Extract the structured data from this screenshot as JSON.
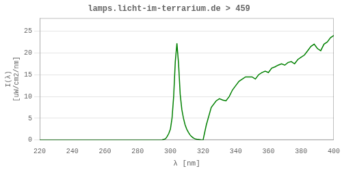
{
  "chart_data": {
    "type": "line",
    "title": "lamps.licht-im-terrarium.de > 459",
    "xlabel": "λ [nm]",
    "ylabel": "I(λ)\n[uW/cm2/nm]",
    "color": "#008000",
    "grid": "y",
    "xlim": [
      220,
      400
    ],
    "ylim": [
      0,
      28
    ],
    "xticks": [
      220,
      240,
      260,
      280,
      300,
      320,
      340,
      360,
      380,
      400
    ],
    "yticks": [
      0,
      5,
      10,
      15,
      20,
      25
    ],
    "x": [
      220,
      240,
      260,
      280,
      290,
      293,
      295,
      297,
      298,
      299,
      300,
      301,
      302,
      303,
      304,
      305,
      306,
      307,
      308,
      309,
      310,
      311,
      312,
      313,
      314,
      315,
      316,
      317,
      318,
      319,
      320,
      322,
      325,
      328,
      330,
      332,
      334,
      336,
      338,
      340,
      342,
      344,
      346,
      348,
      350,
      352,
      354,
      356,
      358,
      360,
      362,
      364,
      366,
      368,
      370,
      372,
      374,
      376,
      378,
      380,
      382,
      384,
      386,
      388,
      390,
      392,
      394,
      396,
      398,
      400
    ],
    "values": [
      0,
      0,
      0,
      0,
      0,
      0,
      0.05,
      0.3,
      0.8,
      1.5,
      2.5,
      5.0,
      10.0,
      18.0,
      22.2,
      17.5,
      10.5,
      7.0,
      5.0,
      3.5,
      2.5,
      1.8,
      1.2,
      0.8,
      0.5,
      0.3,
      0.2,
      0.15,
      0.1,
      0.05,
      0.02,
      3.5,
      7.5,
      9.0,
      9.5,
      9.2,
      9.0,
      10.0,
      11.5,
      12.5,
      13.5,
      14.0,
      14.5,
      14.5,
      14.5,
      14.0,
      15.0,
      15.5,
      15.8,
      15.5,
      16.5,
      16.8,
      17.2,
      17.5,
      17.2,
      17.8,
      18.0,
      17.5,
      18.5,
      19.0,
      19.5,
      20.5,
      21.5,
      22.0,
      21.0,
      20.5,
      22.0,
      22.5,
      23.5,
      24.0
    ]
  }
}
